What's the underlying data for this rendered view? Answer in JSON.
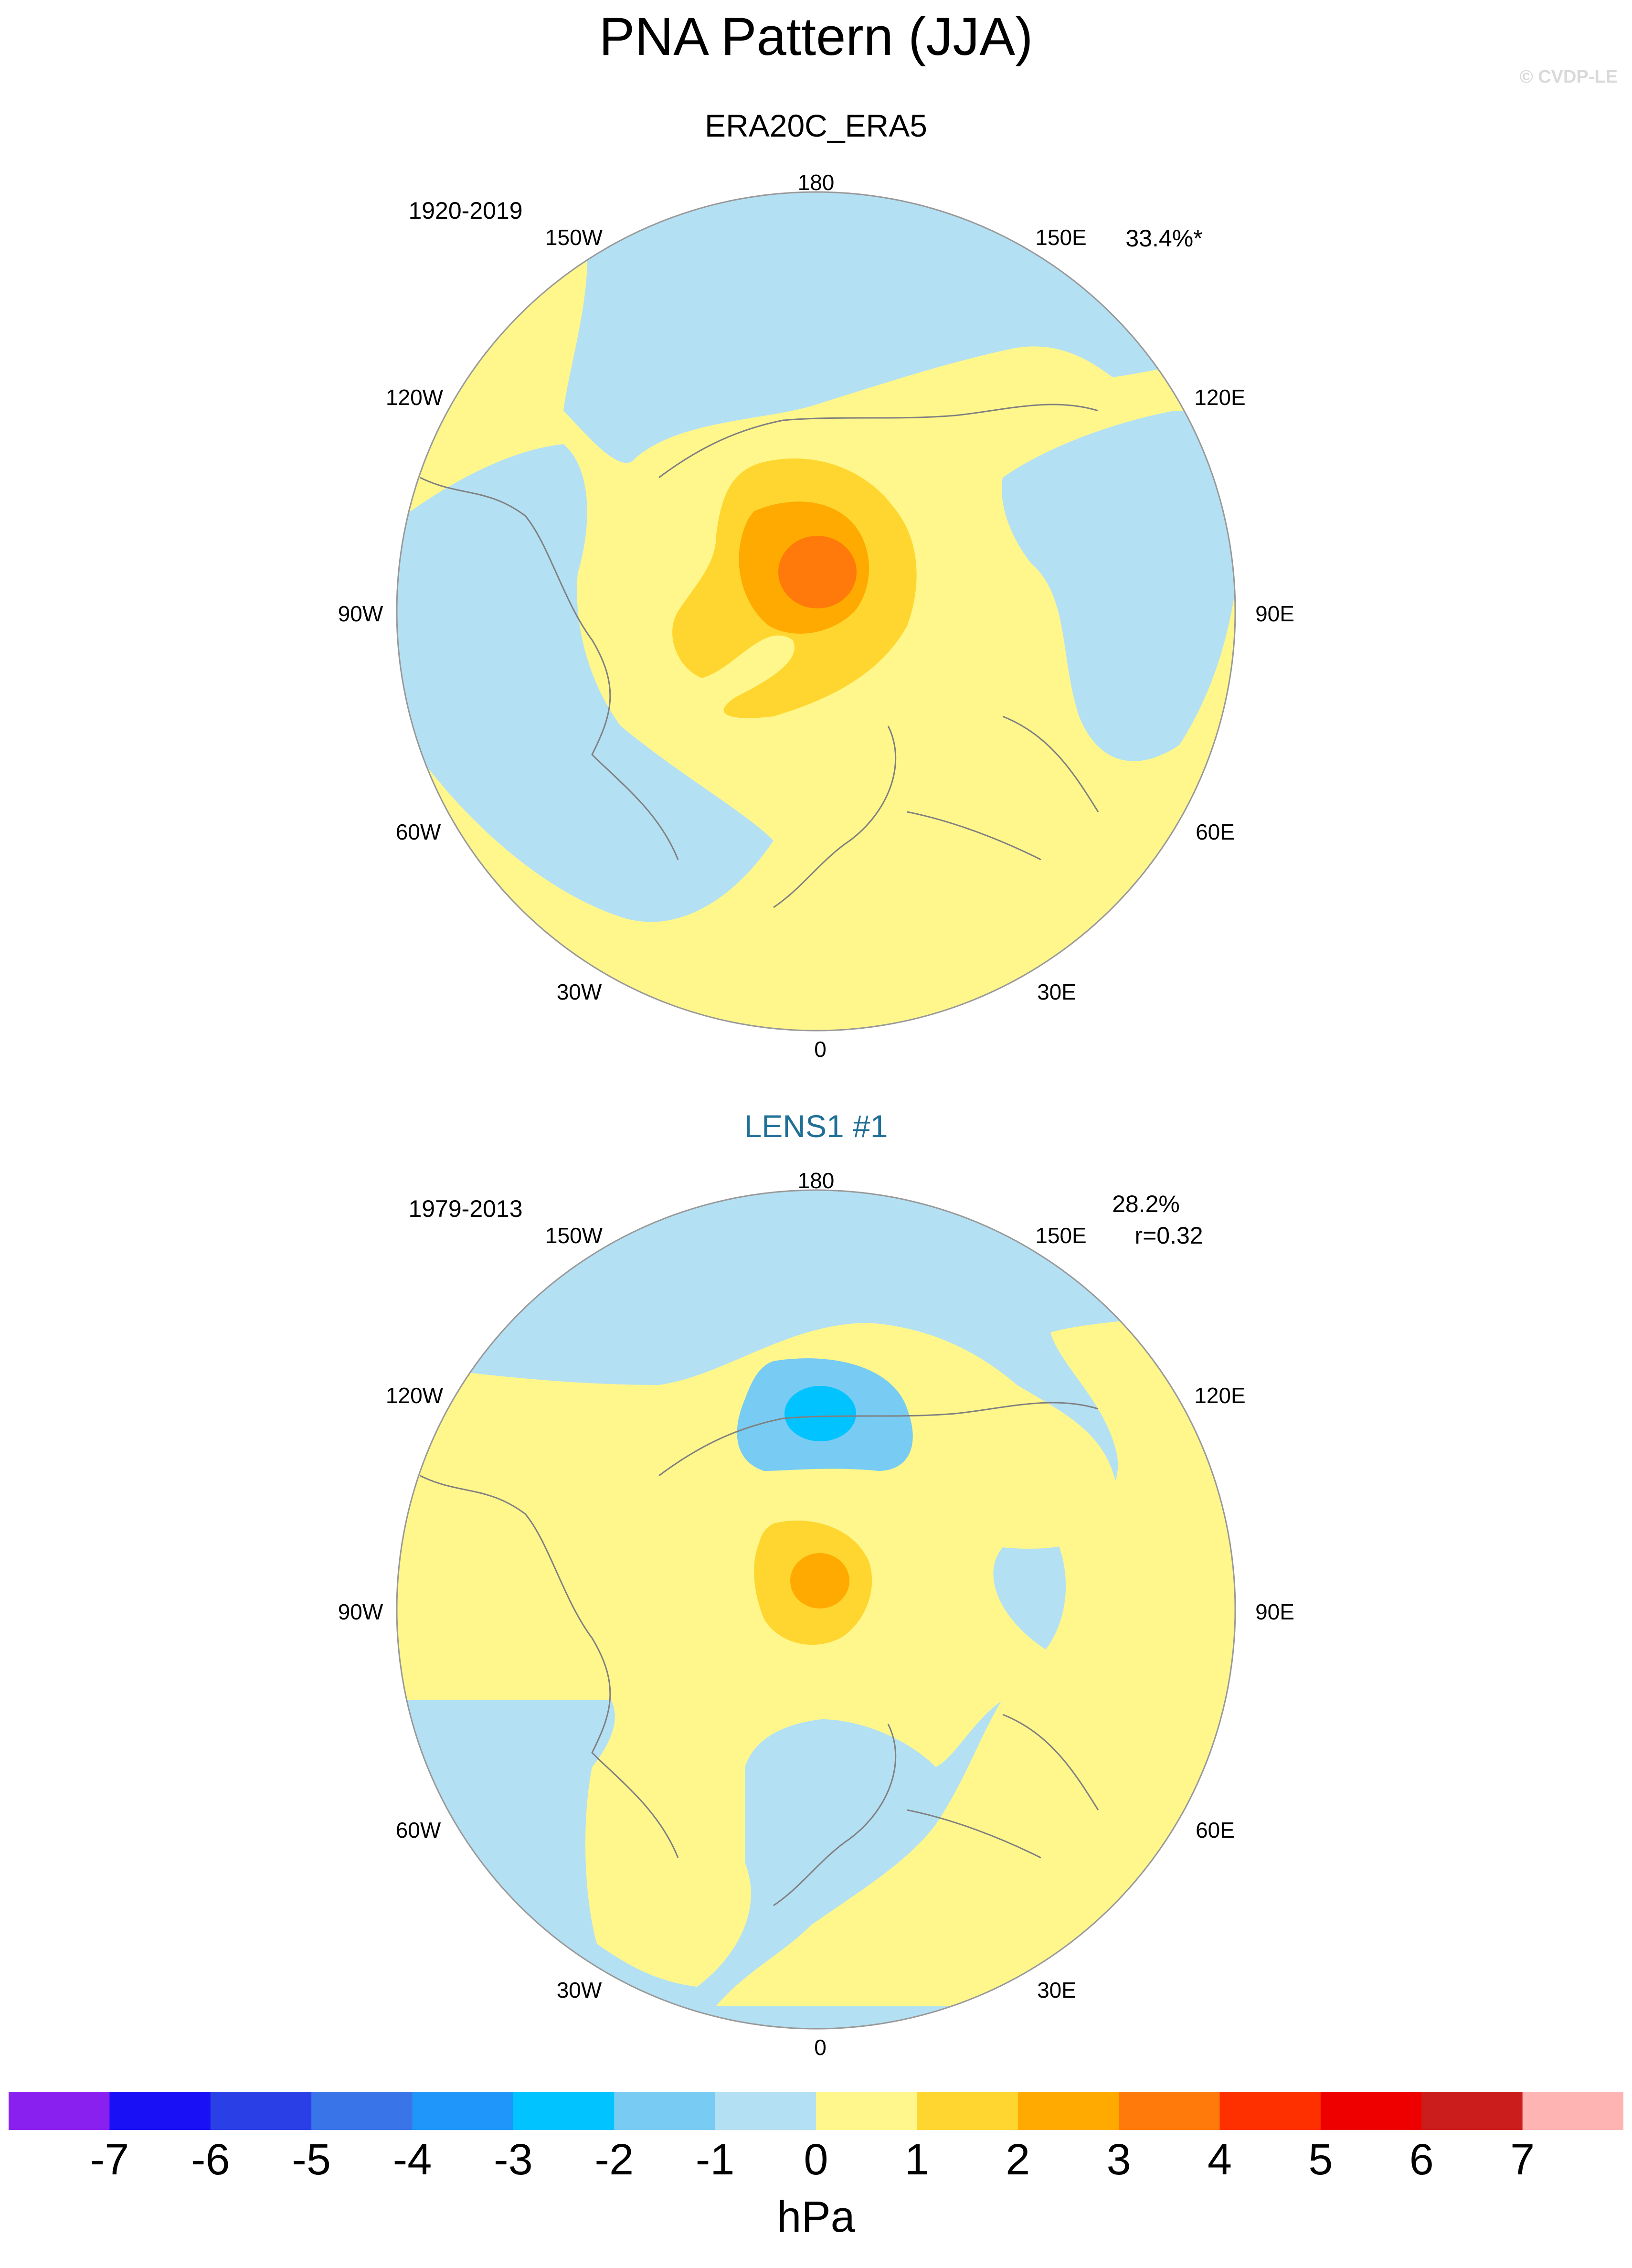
{
  "title": "PNA Pattern (JJA)",
  "watermark": "© CVDP-LE",
  "colors": {
    "ocean_negative": "#b4e0f4",
    "land_positive": "#fff78c",
    "coast": "#808080"
  },
  "panels": [
    {
      "title": "ERA20C_ERA5",
      "period": "1920-2019",
      "pct_var": "33.4%*",
      "correlation": "",
      "lon_labels": {
        "top": "180",
        "bottom": "0",
        "nw150": "150W",
        "ne150": "150E",
        "nw120": "120W",
        "ne120": "120E",
        "w90": "90W",
        "e90": "90E",
        "sw60": "60W",
        "se60": "60E",
        "sw30": "30W",
        "se30": "30E"
      }
    },
    {
      "title": "LENS1 #1",
      "period": "1979-2013",
      "pct_var": "28.2%",
      "correlation": "r=0.32",
      "lon_labels": {
        "top": "180",
        "bottom": "0",
        "nw150": "150W",
        "ne150": "150E",
        "nw120": "120W",
        "ne120": "120E",
        "w90": "90W",
        "e90": "90E",
        "sw60": "60W",
        "se60": "60E",
        "sw30": "30W",
        "se30": "30E"
      }
    }
  ],
  "colorbar": {
    "units": "hPa",
    "tick_labels": [
      "-7",
      "-6",
      "-5",
      "-4",
      "-3",
      "-2",
      "-1",
      "0",
      "1",
      "2",
      "3",
      "4",
      "5",
      "6",
      "7"
    ],
    "colors": [
      "#8a20f0",
      "#1a10f5",
      "#2a40e6",
      "#3a74e9",
      "#1f96fa",
      "#00c3ff",
      "#78cbf2",
      "#b4e0f4",
      "#fff78c",
      "#ffd630",
      "#ffaa00",
      "#ff7a0a",
      "#ff3000",
      "#ee0000",
      "#cc1d1d",
      "#ffb4b4"
    ]
  }
}
